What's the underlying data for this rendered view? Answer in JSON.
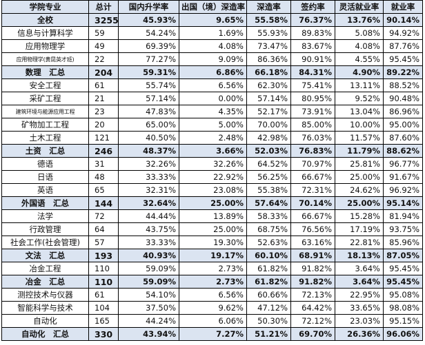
{
  "headers": [
    "学院专业",
    "总计",
    "国内升学率",
    "出国（境）深造率",
    "深造率",
    "签约率",
    "灵活就业率",
    "就业率"
  ],
  "rows": [
    {
      "name": "全校",
      "total": "3255",
      "domestic": "45.93%",
      "abroad": "9.65%",
      "further": "55.58%",
      "signed": "76.37%",
      "flexible": "13.76%",
      "employment": "90.14%",
      "summary": true
    },
    {
      "name": "信息与计算科学",
      "total": "59",
      "domestic": "54.24%",
      "abroad": "1.69%",
      "further": "55.93%",
      "signed": "89.83%",
      "flexible": "5.08%",
      "employment": "94.92%",
      "summary": false
    },
    {
      "name": "应用物理学",
      "total": "49",
      "domestic": "69.39%",
      "abroad": "4.08%",
      "further": "73.47%",
      "signed": "83.67%",
      "flexible": "4.08%",
      "employment": "87.76%",
      "summary": false
    },
    {
      "name": "应用物理学(黄昆英才班)",
      "total": "22",
      "domestic": "77.27%",
      "abroad": "9.09%",
      "further": "86.36%",
      "signed": "90.91%",
      "flexible": "4.55%",
      "employment": "95.45%",
      "summary": false,
      "small": true
    },
    {
      "name": "数理　汇总",
      "total": "204",
      "domestic": "59.31%",
      "abroad": "6.86%",
      "further": "66.18%",
      "signed": "84.31%",
      "flexible": "4.90%",
      "employment": "89.22%",
      "summary": true
    },
    {
      "name": "安全工程",
      "total": "61",
      "domestic": "55.74%",
      "abroad": "6.56%",
      "further": "62.30%",
      "signed": "75.41%",
      "flexible": "13.11%",
      "employment": "88.52%",
      "summary": false
    },
    {
      "name": "采矿工程",
      "total": "21",
      "domestic": "57.14%",
      "abroad": "0.00%",
      "further": "57.14%",
      "signed": "80.95%",
      "flexible": "9.52%",
      "employment": "90.48%",
      "summary": false
    },
    {
      "name": "建筑环境与能源应用工程",
      "total": "23",
      "domestic": "47.83%",
      "abroad": "4.35%",
      "further": "52.17%",
      "signed": "73.91%",
      "flexible": "13.04%",
      "employment": "86.96%",
      "summary": false,
      "small": true
    },
    {
      "name": "矿物加工工程",
      "total": "20",
      "domestic": "65.00%",
      "abroad": "5.00%",
      "further": "70.00%",
      "signed": "85.00%",
      "flexible": "10.00%",
      "employment": "95.00%",
      "summary": false
    },
    {
      "name": "土木工程",
      "total": "121",
      "domestic": "40.50%",
      "abroad": "2.48%",
      "further": "42.98%",
      "signed": "76.03%",
      "flexible": "11.57%",
      "employment": "87.60%",
      "summary": false
    },
    {
      "name": "土资　汇总",
      "total": "246",
      "domestic": "48.37%",
      "abroad": "3.66%",
      "further": "52.03%",
      "signed": "76.83%",
      "flexible": "11.79%",
      "employment": "88.62%",
      "summary": true
    },
    {
      "name": "德语",
      "total": "31",
      "domestic": "32.26%",
      "abroad": "32.26%",
      "further": "64.52%",
      "signed": "70.97%",
      "flexible": "25.81%",
      "employment": "96.77%",
      "summary": false
    },
    {
      "name": "日语",
      "total": "48",
      "domestic": "33.33%",
      "abroad": "22.92%",
      "further": "56.25%",
      "signed": "66.67%",
      "flexible": "25.00%",
      "employment": "91.67%",
      "summary": false
    },
    {
      "name": "英语",
      "total": "65",
      "domestic": "32.31%",
      "abroad": "23.08%",
      "further": "55.38%",
      "signed": "72.31%",
      "flexible": "24.62%",
      "employment": "96.92%",
      "summary": false
    },
    {
      "name": "外国语　汇总",
      "total": "144",
      "domestic": "32.64%",
      "abroad": "25.00%",
      "further": "57.64%",
      "signed": "70.14%",
      "flexible": "25.00%",
      "employment": "95.14%",
      "summary": true
    },
    {
      "name": "法学",
      "total": "72",
      "domestic": "44.44%",
      "abroad": "13.89%",
      "further": "58.33%",
      "signed": "66.67%",
      "flexible": "15.28%",
      "employment": "81.94%",
      "summary": false
    },
    {
      "name": "行政管理",
      "total": "64",
      "domestic": "43.75%",
      "abroad": "25.00%",
      "further": "68.75%",
      "signed": "76.56%",
      "flexible": "17.19%",
      "employment": "93.75%",
      "summary": false
    },
    {
      "name": "社会工作(社会管理)",
      "total": "57",
      "domestic": "33.33%",
      "abroad": "19.30%",
      "further": "52.63%",
      "signed": "63.16%",
      "flexible": "22.81%",
      "employment": "85.96%",
      "summary": false
    },
    {
      "name": "文法　汇总",
      "total": "193",
      "domestic": "40.93%",
      "abroad": "19.17%",
      "further": "60.10%",
      "signed": "68.91%",
      "flexible": "18.13%",
      "employment": "87.05%",
      "summary": true
    },
    {
      "name": "冶金工程",
      "total": "110",
      "domestic": "59.09%",
      "abroad": "2.73%",
      "further": "61.82%",
      "signed": "91.82%",
      "flexible": "3.64%",
      "employment": "95.45%",
      "summary": false
    },
    {
      "name": "冶金　汇总",
      "total": "110",
      "domestic": "59.09%",
      "abroad": "2.73%",
      "further": "61.82%",
      "signed": "91.82%",
      "flexible": "3.64%",
      "employment": "95.45%",
      "summary": true
    },
    {
      "name": "测控技术与仪器",
      "total": "61",
      "domestic": "54.10%",
      "abroad": "6.56%",
      "further": "60.66%",
      "signed": "72.13%",
      "flexible": "22.95%",
      "employment": "95.08%",
      "summary": false
    },
    {
      "name": "智能科学与技术",
      "total": "104",
      "domestic": "37.50%",
      "abroad": "9.62%",
      "further": "47.12%",
      "signed": "64.42%",
      "flexible": "33.65%",
      "employment": "98.08%",
      "summary": false
    },
    {
      "name": "自动化",
      "total": "165",
      "domestic": "44.24%",
      "abroad": "6.06%",
      "further": "50.30%",
      "signed": "72.12%",
      "flexible": "23.03%",
      "employment": "95.15%",
      "summary": false
    },
    {
      "name": "自动化　汇总",
      "total": "330",
      "domestic": "43.94%",
      "abroad": "7.27%",
      "further": "51.21%",
      "signed": "69.70%",
      "flexible": "26.36%",
      "employment": "96.06%",
      "summary": true
    }
  ]
}
